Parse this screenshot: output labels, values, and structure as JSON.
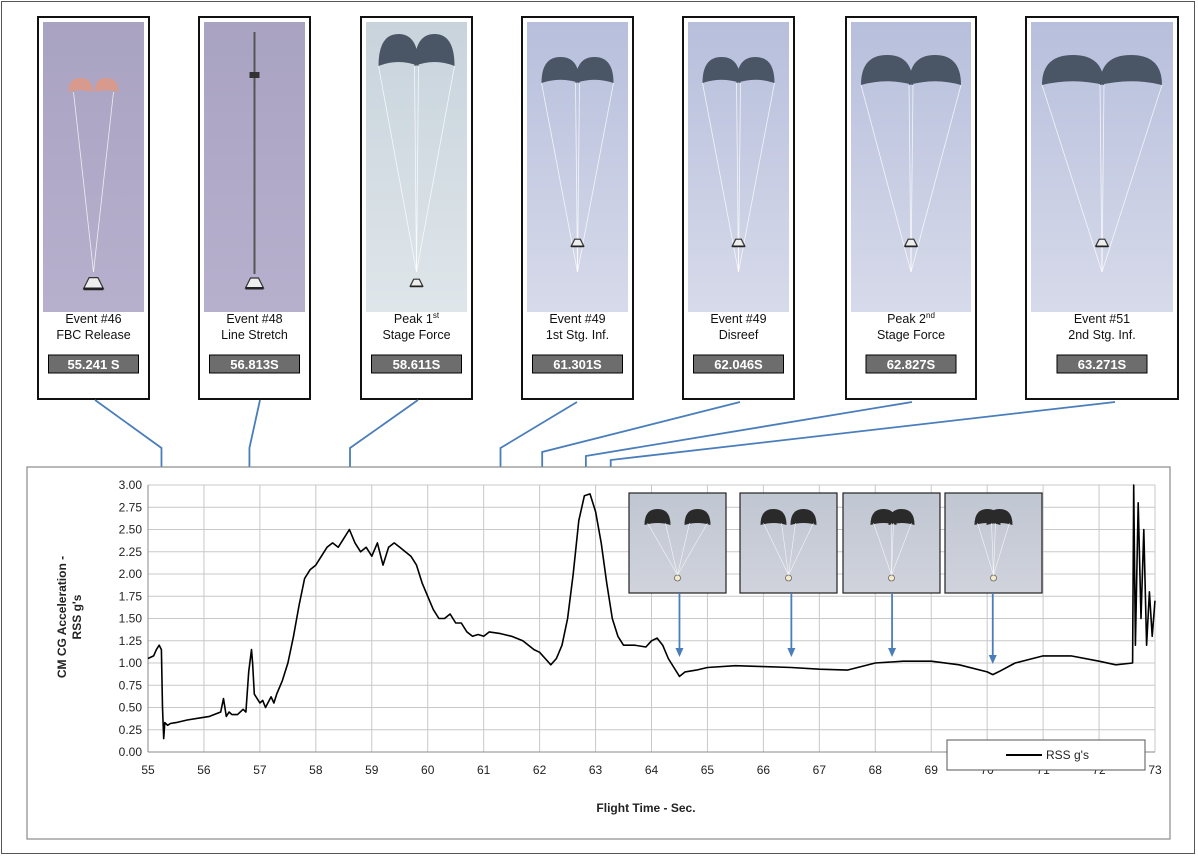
{
  "events": [
    {
      "line1": "Event #46",
      "line2": "FBC Release",
      "time": "55.241 S",
      "t": 55.241,
      "photo": "two-small-chutes",
      "sup": ""
    },
    {
      "line1": "Event #48",
      "line2": "Line Stretch",
      "time": "56.813S",
      "t": 56.813,
      "photo": "line-stretch",
      "sup": ""
    },
    {
      "line1": "Peak 1",
      "line2": "Stage Force",
      "time": "58.611S",
      "t": 58.611,
      "photo": "peak-first-stage",
      "sup": "st"
    },
    {
      "line1": "Event #49",
      "line2": "1st Stg. Inf.",
      "time": "61.301S",
      "t": 61.301,
      "photo": "first-stage-inflated",
      "sup": ""
    },
    {
      "line1": "Event #49",
      "line2": "Disreef",
      "time": "62.046S",
      "t": 62.046,
      "photo": "disreef",
      "sup": ""
    },
    {
      "line1": "Peak 2",
      "line2": "Stage Force",
      "time": "62.827S",
      "t": 62.827,
      "photo": "peak-second-stage",
      "sup": "nd"
    },
    {
      "line1": "Event #51",
      "line2": "2nd Stg. Inf.",
      "time": "63.271S",
      "t": 63.271,
      "photo": "second-stage-inflated",
      "sup": ""
    }
  ],
  "inset_photos": [
    {
      "name": "inset-photo-1",
      "t": 64.5
    },
    {
      "name": "inset-photo-2",
      "t": 66.5
    },
    {
      "name": "inset-photo-3",
      "t": 68.3
    },
    {
      "name": "inset-photo-4",
      "t": 70.1
    }
  ],
  "colors": {
    "arrow": "#4a7ebb",
    "line": "#000000",
    "time_box": "#6d6d6d",
    "grid": "#c8c8c8"
  },
  "chart_data": {
    "type": "line",
    "title": "",
    "xlabel": "Flight Time - Sec.",
    "ylabel_line1": "CM CG Acceleration -",
    "ylabel_line2": "RSS g's",
    "xlim": [
      55,
      73
    ],
    "ylim": [
      0,
      3
    ],
    "xticks": [
      "55",
      "56",
      "57",
      "58",
      "59",
      "60",
      "61",
      "62",
      "63",
      "64",
      "65",
      "66",
      "67",
      "68",
      "69",
      "70",
      "71",
      "72",
      "73"
    ],
    "yticks": [
      "0.00",
      "0.25",
      "0.50",
      "0.75",
      "1.00",
      "1.25",
      "1.50",
      "1.75",
      "2.00",
      "2.25",
      "2.50",
      "2.75",
      "3.00"
    ],
    "grid": true,
    "legend_position": "bottom-right",
    "series": [
      {
        "name": "RSS g's",
        "x": [
          55.0,
          55.1,
          55.15,
          55.2,
          55.24,
          55.26,
          55.28,
          55.3,
          55.35,
          55.4,
          55.5,
          55.7,
          55.9,
          56.1,
          56.3,
          56.35,
          56.4,
          56.45,
          56.5,
          56.6,
          56.7,
          56.75,
          56.8,
          56.85,
          56.87,
          56.9,
          56.95,
          57.0,
          57.05,
          57.1,
          57.2,
          57.25,
          57.3,
          57.4,
          57.5,
          57.6,
          57.7,
          57.8,
          57.9,
          58.0,
          58.1,
          58.2,
          58.3,
          58.4,
          58.5,
          58.6,
          58.7,
          58.8,
          58.9,
          59.0,
          59.1,
          59.2,
          59.3,
          59.4,
          59.5,
          59.6,
          59.7,
          59.8,
          59.9,
          60.0,
          60.1,
          60.2,
          60.3,
          60.4,
          60.5,
          60.6,
          60.7,
          60.8,
          60.9,
          61.0,
          61.1,
          61.3,
          61.5,
          61.7,
          61.9,
          62.0,
          62.1,
          62.2,
          62.3,
          62.4,
          62.5,
          62.6,
          62.7,
          62.8,
          62.9,
          63.0,
          63.1,
          63.2,
          63.3,
          63.4,
          63.5,
          63.7,
          63.9,
          64.0,
          64.1,
          64.2,
          64.3,
          64.4,
          64.5,
          64.6,
          64.8,
          65.0,
          65.5,
          66.0,
          66.5,
          67.0,
          67.5,
          68.0,
          68.5,
          69.0,
          69.5,
          70.0,
          70.1,
          70.2,
          70.5,
          71.0,
          71.5,
          72.0,
          72.3,
          72.6,
          72.62,
          72.65,
          72.7,
          72.75,
          72.8,
          72.85,
          72.9,
          72.95,
          73.0
        ],
        "y": [
          1.05,
          1.08,
          1.15,
          1.2,
          1.15,
          0.5,
          0.15,
          0.33,
          0.3,
          0.32,
          0.33,
          0.36,
          0.38,
          0.4,
          0.45,
          0.6,
          0.4,
          0.45,
          0.42,
          0.42,
          0.48,
          0.45,
          0.9,
          1.15,
          1.0,
          0.65,
          0.6,
          0.55,
          0.58,
          0.5,
          0.62,
          0.55,
          0.65,
          0.8,
          1.0,
          1.3,
          1.65,
          1.95,
          2.05,
          2.1,
          2.2,
          2.3,
          2.35,
          2.3,
          2.4,
          2.5,
          2.35,
          2.25,
          2.3,
          2.2,
          2.35,
          2.1,
          2.3,
          2.35,
          2.3,
          2.25,
          2.2,
          2.1,
          1.9,
          1.75,
          1.6,
          1.5,
          1.5,
          1.55,
          1.45,
          1.45,
          1.35,
          1.3,
          1.32,
          1.3,
          1.35,
          1.33,
          1.3,
          1.25,
          1.15,
          1.12,
          1.05,
          0.98,
          1.05,
          1.2,
          1.5,
          2.0,
          2.6,
          2.88,
          2.9,
          2.7,
          2.35,
          1.9,
          1.5,
          1.3,
          1.2,
          1.2,
          1.18,
          1.25,
          1.28,
          1.2,
          1.05,
          0.95,
          0.85,
          0.9,
          0.92,
          0.95,
          0.97,
          0.96,
          0.95,
          0.93,
          0.92,
          1.0,
          1.02,
          1.02,
          0.98,
          0.9,
          0.87,
          0.9,
          1.0,
          1.08,
          1.08,
          1.02,
          0.98,
          1.0,
          3.0,
          1.2,
          2.8,
          1.5,
          2.5,
          1.2,
          1.8,
          1.3,
          1.7
        ]
      }
    ]
  }
}
